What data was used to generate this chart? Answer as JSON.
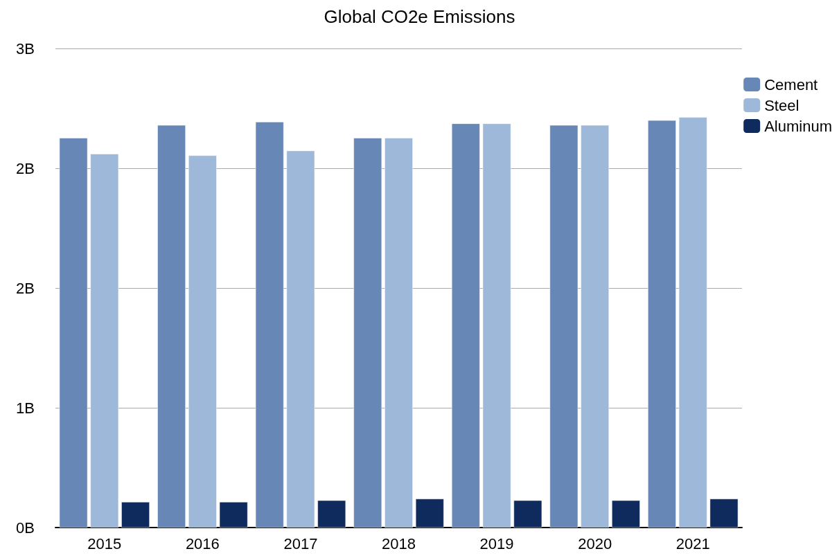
{
  "chart_data": {
    "type": "bar",
    "title": "Global CO2e Emissions",
    "categories": [
      "2015",
      "2016",
      "2017",
      "2018",
      "2019",
      "2020",
      "2021"
    ],
    "series": [
      {
        "name": "Cement",
        "color": "#6787b7",
        "values": [
          2.44,
          2.52,
          2.54,
          2.44,
          2.53,
          2.52,
          2.55
        ]
      },
      {
        "name": "Steel",
        "color": "#9db8d9",
        "values": [
          2.34,
          2.33,
          2.36,
          2.44,
          2.53,
          2.52,
          2.57
        ]
      },
      {
        "name": "Aluminum",
        "color": "#0f2b5e",
        "values": [
          0.16,
          0.16,
          0.17,
          0.18,
          0.17,
          0.17,
          0.18
        ]
      }
    ],
    "ylim": [
      0,
      3
    ],
    "yticks": [
      {
        "value": 0,
        "label": "0B"
      },
      {
        "value": 0.75,
        "label": "1B"
      },
      {
        "value": 1.5,
        "label": "2B"
      },
      {
        "value": 2.25,
        "label": "2B"
      },
      {
        "value": 3,
        "label": "3B"
      }
    ],
    "grid": "y",
    "legend": "top right"
  }
}
